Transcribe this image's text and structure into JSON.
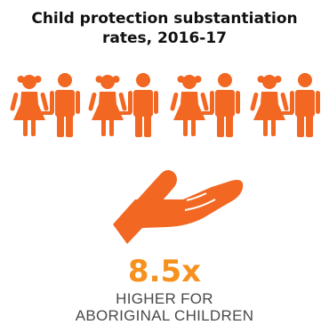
{
  "title": {
    "line1": "Child protection substantiation",
    "line2": "rates, 2016-17"
  },
  "icons": {
    "people": "children-group-icon",
    "hand": "open-hand-icon"
  },
  "stat": {
    "value": "8.5x"
  },
  "caption": {
    "line1": "HIGHER FOR",
    "line2": "ABORIGINAL CHILDREN"
  },
  "colors": {
    "icon_orange": "#f26722",
    "stat_orange": "#f7911d",
    "title_text": "#111111",
    "caption_text": "#4a4a4a"
  }
}
